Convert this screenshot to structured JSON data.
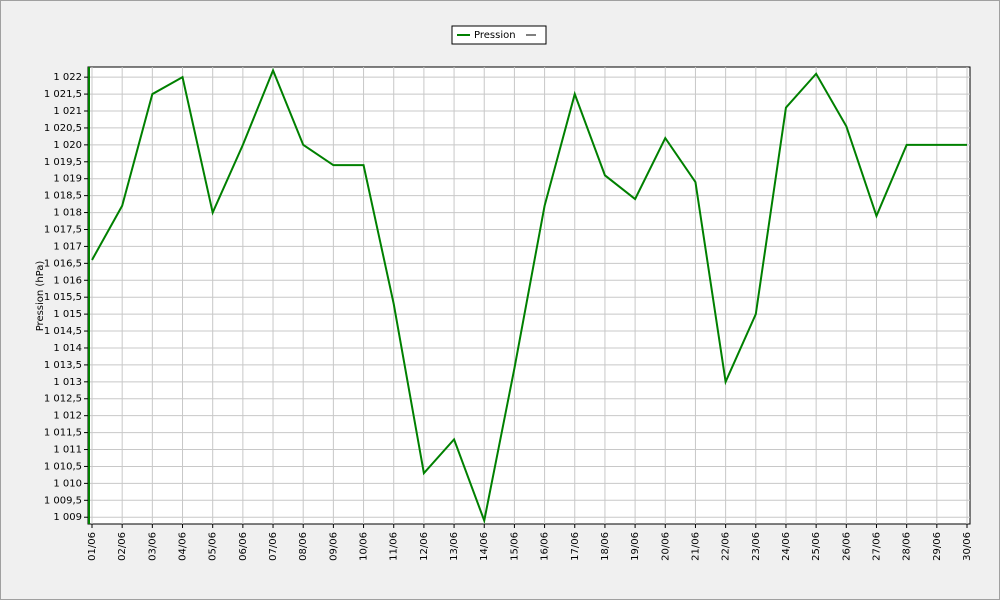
{
  "chart_data": {
    "type": "line",
    "y_label": "Pression (hPa)",
    "categories": [
      "01/06",
      "02/06",
      "03/06",
      "04/06",
      "05/06",
      "06/06",
      "07/06",
      "08/06",
      "09/06",
      "10/06",
      "11/06",
      "12/06",
      "13/06",
      "14/06",
      "15/06",
      "16/06",
      "17/06",
      "18/06",
      "19/06",
      "20/06",
      "21/06",
      "22/06",
      "23/06",
      "24/06",
      "25/06",
      "26/06",
      "27/06",
      "28/06",
      "29/06",
      "30/06"
    ],
    "series": [
      {
        "name": "Pression",
        "color": "#008000",
        "values": [
          1016.6,
          1018.2,
          1021.5,
          1022.0,
          1018.0,
          1020.0,
          1022.2,
          1020.0,
          1019.4,
          1019.4,
          1015.3,
          1010.3,
          1011.3,
          1008.9,
          1013.4,
          1018.2,
          1021.5,
          1019.1,
          1018.4,
          1020.2,
          1018.9,
          1013.0,
          1015.0,
          1021.1,
          1022.1,
          1020.55,
          1017.9,
          1020.0,
          1020.0,
          1020.0
        ]
      }
    ],
    "ylim": [
      1008.8,
      1022.3
    ],
    "yticks": [
      {
        "value": 1009,
        "label": "1 009"
      },
      {
        "value": 1009.5,
        "label": "1 009,5"
      },
      {
        "value": 1010,
        "label": "1 010"
      },
      {
        "value": 1010.5,
        "label": "1 010,5"
      },
      {
        "value": 1011,
        "label": "1 011"
      },
      {
        "value": 1011.5,
        "label": "1 011,5"
      },
      {
        "value": 1012,
        "label": "1 012"
      },
      {
        "value": 1012.5,
        "label": "1 012,5"
      },
      {
        "value": 1013,
        "label": "1 013"
      },
      {
        "value": 1013.5,
        "label": "1 013,5"
      },
      {
        "value": 1014,
        "label": "1 014"
      },
      {
        "value": 1014.5,
        "label": "1 014,5"
      },
      {
        "value": 1015,
        "label": "1 015"
      },
      {
        "value": 1015.5,
        "label": "1 015,5"
      },
      {
        "value": 1016,
        "label": "1 016"
      },
      {
        "value": 1016.5,
        "label": "1 016,5"
      },
      {
        "value": 1017,
        "label": "1 017"
      },
      {
        "value": 1017.5,
        "label": "1 017,5"
      },
      {
        "value": 1018,
        "label": "1 018"
      },
      {
        "value": 1018.5,
        "label": "1 018,5"
      },
      {
        "value": 1019,
        "label": "1 019"
      },
      {
        "value": 1019.5,
        "label": "1 019,5"
      },
      {
        "value": 1020,
        "label": "1 020"
      },
      {
        "value": 1020.5,
        "label": "1 020,5"
      },
      {
        "value": 1021,
        "label": "1 021"
      },
      {
        "value": 1021.5,
        "label": "1 021,5"
      },
      {
        "value": 1022,
        "label": "1 022"
      }
    ],
    "grid": true,
    "legend": "top"
  }
}
